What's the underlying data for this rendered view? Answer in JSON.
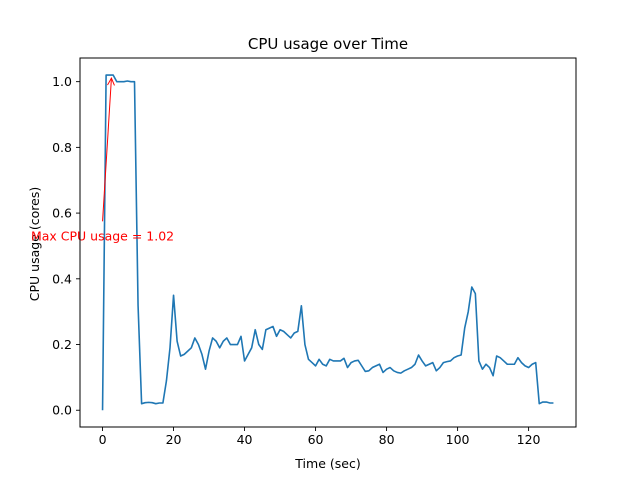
{
  "chart_data": {
    "type": "line",
    "title": "CPU usage over Time",
    "xlabel": "Time (sec)",
    "ylabel": "CPU usage (cores)",
    "xlim": [
      -6.35,
      133.35
    ],
    "ylim": [
      -0.051,
      1.072
    ],
    "xticks": [
      0,
      20,
      40,
      60,
      80,
      100,
      120
    ],
    "yticks": [
      0.0,
      0.2,
      0.4,
      0.6,
      0.8,
      1.0
    ],
    "xtick_labels": [
      "0",
      "20",
      "40",
      "60",
      "80",
      "100",
      "120"
    ],
    "ytick_labels": [
      "0.0",
      "0.2",
      "0.4",
      "0.6",
      "0.8",
      "1.0"
    ],
    "grid": false,
    "series": [
      {
        "color": "#1f77b4",
        "x": [
          0,
          1,
          2,
          3,
          4,
          5,
          6,
          7,
          8,
          9,
          10,
          11,
          12,
          13,
          14,
          15,
          16,
          17,
          18,
          19,
          20,
          21,
          22,
          23,
          24,
          25,
          26,
          27,
          28,
          29,
          30,
          31,
          32,
          33,
          34,
          35,
          36,
          37,
          38,
          39,
          40,
          41,
          42,
          43,
          44,
          45,
          46,
          47,
          48,
          49,
          50,
          51,
          52,
          53,
          54,
          55,
          56,
          57,
          58,
          59,
          60,
          61,
          62,
          63,
          64,
          65,
          66,
          67,
          68,
          69,
          70,
          71,
          72,
          73,
          74,
          75,
          76,
          77,
          78,
          79,
          80,
          81,
          82,
          83,
          84,
          85,
          86,
          87,
          88,
          89,
          90,
          91,
          92,
          93,
          94,
          95,
          96,
          97,
          98,
          99,
          100,
          101,
          102,
          103,
          104,
          105,
          106,
          107,
          108,
          109,
          110,
          111,
          112,
          113,
          114,
          115,
          116,
          117,
          118,
          119,
          120,
          121,
          122,
          123,
          124,
          125,
          126,
          127
        ],
        "y": [
          0.0,
          1.02,
          1.02,
          1.02,
          1.0,
          1.0,
          1.0,
          1.002,
          1.0,
          1.0,
          0.32,
          0.02,
          0.023,
          0.024,
          0.023,
          0.02,
          0.022,
          0.022,
          0.09,
          0.19,
          0.35,
          0.21,
          0.165,
          0.17,
          0.18,
          0.19,
          0.22,
          0.2,
          0.17,
          0.125,
          0.18,
          0.22,
          0.21,
          0.19,
          0.21,
          0.22,
          0.2,
          0.2,
          0.2,
          0.225,
          0.15,
          0.17,
          0.19,
          0.245,
          0.2,
          0.185,
          0.245,
          0.25,
          0.255,
          0.225,
          0.245,
          0.24,
          0.23,
          0.22,
          0.235,
          0.24,
          0.318,
          0.2,
          0.155,
          0.145,
          0.135,
          0.155,
          0.14,
          0.135,
          0.155,
          0.15,
          0.15,
          0.15,
          0.158,
          0.13,
          0.145,
          0.15,
          0.152,
          0.135,
          0.118,
          0.12,
          0.13,
          0.135,
          0.14,
          0.115,
          0.125,
          0.13,
          0.12,
          0.115,
          0.113,
          0.12,
          0.125,
          0.13,
          0.14,
          0.168,
          0.15,
          0.135,
          0.14,
          0.145,
          0.12,
          0.13,
          0.145,
          0.148,
          0.15,
          0.16,
          0.165,
          0.168,
          0.25,
          0.3,
          0.375,
          0.355,
          0.15,
          0.125,
          0.14,
          0.13,
          0.105,
          0.165,
          0.16,
          0.15,
          0.14,
          0.14,
          0.14,
          0.16,
          0.145,
          0.135,
          0.13,
          0.14,
          0.145,
          0.02,
          0.025,
          0.025,
          0.022,
          0.022
        ]
      }
    ],
    "annotation": {
      "text": "Max CPU usage = 1.02",
      "color": "#ff0000",
      "text_x": 0.0,
      "text_y": 0.575,
      "arrow_x": 2.5,
      "arrow_y": 1.02
    }
  }
}
